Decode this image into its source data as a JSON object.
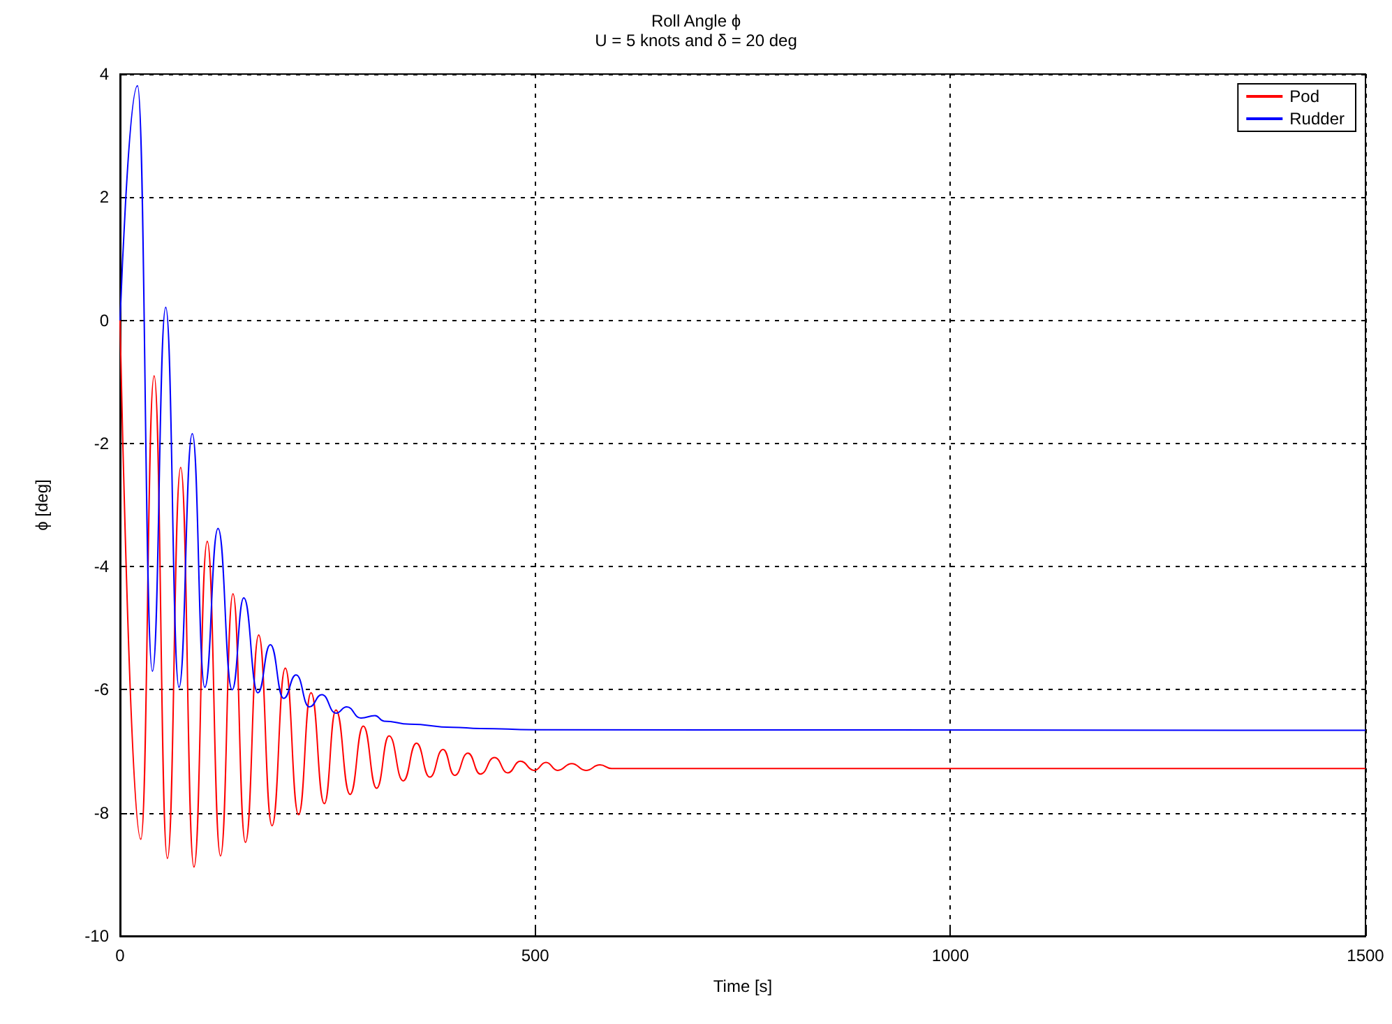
{
  "chart_data": {
    "type": "line",
    "title": "Roll Angle ϕ",
    "subtitle": "U = 5 knots and δ = 20 deg",
    "xlabel": "Time [s]",
    "ylabel": "ϕ [deg]",
    "xlim": [
      0,
      1500
    ],
    "xticks": [
      0,
      500,
      1000,
      1500
    ],
    "ylim": [
      -10,
      4
    ],
    "yticks": [
      -10,
      -8,
      -6,
      -4,
      -2,
      0,
      2,
      4
    ],
    "grid": true,
    "legend": "top right",
    "line_style": "solid",
    "series": [
      {
        "name": "Pod",
        "color": "#ff0000",
        "x": [
          0,
          25,
          41,
          57,
          73,
          89,
          105,
          121,
          136,
          151,
          167,
          183,
          199,
          215,
          230,
          246,
          260,
          277,
          293,
          309,
          324,
          341,
          357,
          373,
          389,
          403,
          419,
          434,
          451,
          467,
          482,
          499,
          513,
          527,
          544,
          561,
          578,
          592,
          700,
          1500
        ],
        "values": [
          0,
          -8.43,
          -0.9,
          -8.74,
          -2.39,
          -8.88,
          -3.59,
          -8.7,
          -4.44,
          -8.48,
          -5.11,
          -8.21,
          -5.65,
          -8.03,
          -6.05,
          -7.85,
          -6.33,
          -7.7,
          -6.59,
          -7.6,
          -6.75,
          -7.48,
          -6.87,
          -7.42,
          -6.97,
          -7.39,
          -7.03,
          -7.37,
          -7.1,
          -7.35,
          -7.16,
          -7.31,
          -7.18,
          -7.31,
          -7.2,
          -7.31,
          -7.22,
          -7.28,
          -7.28,
          -7.28
        ]
      },
      {
        "name": "Rudder",
        "color": "#0000ff",
        "x": [
          0,
          21,
          39,
          55,
          71,
          87,
          102,
          118,
          135,
          149,
          166,
          181,
          197,
          212,
          228,
          243,
          260,
          273,
          290,
          307,
          318,
          349,
          400,
          434,
          500,
          1500
        ],
        "values": [
          0,
          3.81,
          -5.7,
          0.21,
          -5.96,
          -1.84,
          -5.96,
          -3.38,
          -6.0,
          -4.51,
          -6.05,
          -5.27,
          -6.14,
          -5.76,
          -6.28,
          -6.08,
          -6.38,
          -6.28,
          -6.46,
          -6.42,
          -6.51,
          -6.56,
          -6.61,
          -6.63,
          -6.65,
          -6.66
        ]
      }
    ]
  }
}
